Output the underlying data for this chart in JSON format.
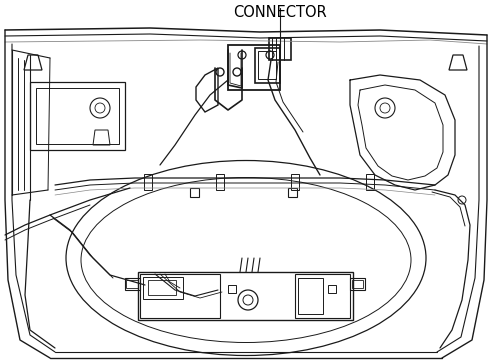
{
  "title": "CONNECTOR",
  "bg_color": "#ffffff",
  "line_color": "#1a1a1a",
  "gray_color": "#888888",
  "light_gray": "#bbbbbb",
  "figsize": [
    4.91,
    3.64
  ],
  "dpi": 100,
  "lw_main": 1.2,
  "lw_thin": 0.7,
  "lw_thick": 1.5
}
